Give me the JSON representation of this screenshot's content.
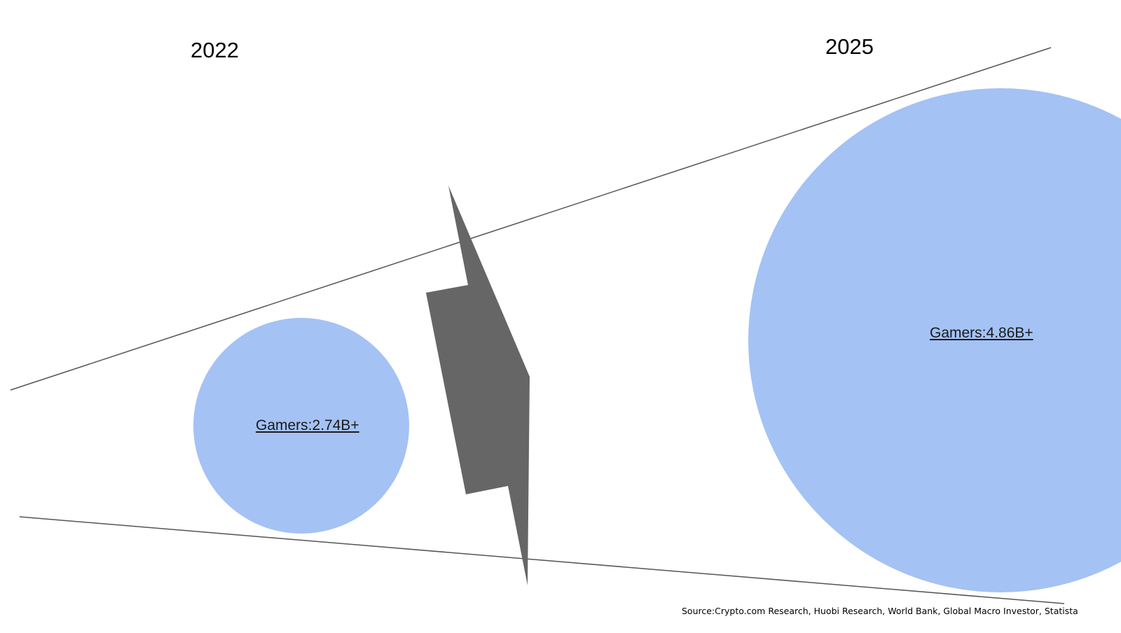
{
  "years": {
    "left": "2022",
    "right": "2025"
  },
  "bubbles": [
    {
      "label": "Gamers:2.74B+",
      "year": "2022"
    },
    {
      "label": "Gamers:4.86B+",
      "year": "2025"
    }
  ],
  "source": "Source:Crypto.com Research, Huobi Research, World Bank, Global Macro Investor, Statista",
  "colors": {
    "bubble_fill": "#a4c2f4",
    "bolt_fill": "#666666",
    "line_stroke": "#555555"
  }
}
